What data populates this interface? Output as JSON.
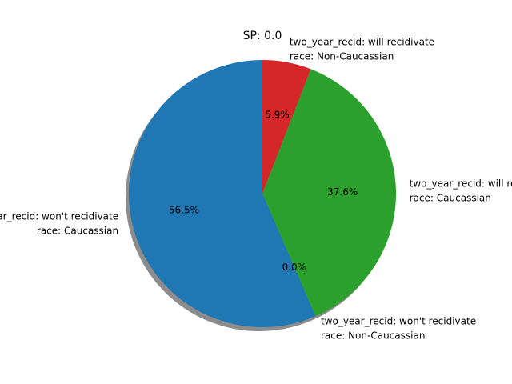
{
  "chart_data": {
    "type": "pie",
    "title": "SP: 0.0",
    "start_angle_deg": 90,
    "counterclockwise": false,
    "shadow": true,
    "slices": [
      {
        "label_lines": [
          "two_year_recid: will recidivate",
          "race: Non-Caucassian"
        ],
        "percent": 5.9,
        "percent_label": "5.9%",
        "color": "#d62728"
      },
      {
        "label_lines": [
          "two_year_recid: will recidivate",
          "race: Caucassian"
        ],
        "percent": 37.6,
        "percent_label": "37.6%",
        "color": "#2ca02c"
      },
      {
        "label_lines": [
          "two_year_recid: won't recidivate",
          "race: Non-Caucassian"
        ],
        "percent": 0.0,
        "percent_label": "0.0%",
        "color": "#ff7f0e"
      },
      {
        "label_lines": [
          "two_year_recid: won't recidivate",
          "race: Caucassian"
        ],
        "percent": 56.5,
        "percent_label": "56.5%",
        "color": "#1f77b4"
      }
    ]
  }
}
